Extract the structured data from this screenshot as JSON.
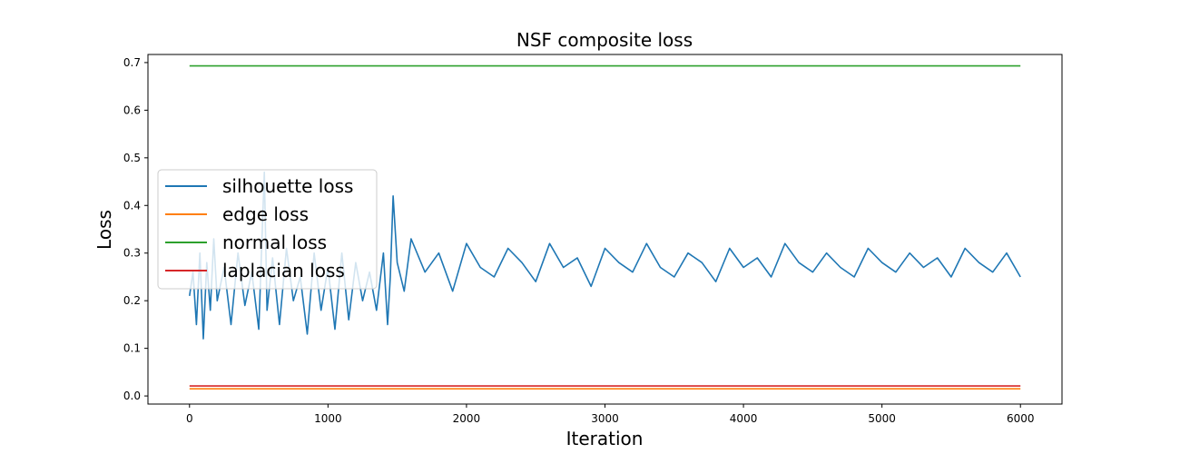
{
  "chart_data": {
    "type": "line",
    "title": "NSF composite loss",
    "xlabel": "Iteration",
    "ylabel": "Loss",
    "xlim": [
      -300,
      6300
    ],
    "ylim": [
      -0.017,
      0.717
    ],
    "xticks": [
      0,
      1000,
      2000,
      3000,
      4000,
      5000,
      6000
    ],
    "yticks": [
      0.0,
      0.1,
      0.2,
      0.3,
      0.4,
      0.5,
      0.6,
      0.7
    ],
    "xtick_labels": [
      "0",
      "1000",
      "2000",
      "3000",
      "4000",
      "5000",
      "6000"
    ],
    "ytick_labels": [
      "0.0",
      "0.1",
      "0.2",
      "0.3",
      "0.4",
      "0.5",
      "0.6",
      "0.7"
    ],
    "grid": false,
    "legend_position": "center-left",
    "series": [
      {
        "name": "silhouette loss",
        "color": "#1f77b4",
        "x": [
          0,
          25,
          50,
          75,
          100,
          125,
          150,
          175,
          200,
          250,
          300,
          350,
          400,
          450,
          500,
          540,
          560,
          600,
          650,
          700,
          750,
          800,
          850,
          900,
          950,
          1000,
          1050,
          1100,
          1150,
          1200,
          1250,
          1300,
          1350,
          1400,
          1430,
          1450,
          1470,
          1500,
          1550,
          1600,
          1700,
          1800,
          1900,
          2000,
          2100,
          2200,
          2300,
          2400,
          2500,
          2600,
          2700,
          2800,
          2900,
          3000,
          3100,
          3200,
          3300,
          3400,
          3500,
          3600,
          3700,
          3800,
          3900,
          4000,
          4100,
          4200,
          4300,
          4400,
          4500,
          4600,
          4700,
          4800,
          4900,
          5000,
          5100,
          5200,
          5300,
          5400,
          5500,
          5600,
          5700,
          5800,
          5900,
          6000
        ],
        "y": [
          0.21,
          0.26,
          0.15,
          0.3,
          0.12,
          0.28,
          0.18,
          0.33,
          0.2,
          0.27,
          0.15,
          0.3,
          0.19,
          0.26,
          0.14,
          0.47,
          0.18,
          0.29,
          0.15,
          0.31,
          0.2,
          0.25,
          0.13,
          0.3,
          0.18,
          0.27,
          0.14,
          0.3,
          0.16,
          0.28,
          0.2,
          0.26,
          0.18,
          0.3,
          0.15,
          0.25,
          0.42,
          0.28,
          0.22,
          0.33,
          0.26,
          0.3,
          0.22,
          0.32,
          0.27,
          0.25,
          0.31,
          0.28,
          0.24,
          0.32,
          0.27,
          0.29,
          0.23,
          0.31,
          0.28,
          0.26,
          0.32,
          0.27,
          0.25,
          0.3,
          0.28,
          0.24,
          0.31,
          0.27,
          0.29,
          0.25,
          0.32,
          0.28,
          0.26,
          0.3,
          0.27,
          0.25,
          0.31,
          0.28,
          0.26,
          0.3,
          0.27,
          0.29,
          0.25,
          0.31,
          0.28,
          0.26,
          0.3,
          0.25
        ]
      },
      {
        "name": "edge loss",
        "color": "#ff7f0e",
        "x": [
          0,
          6000
        ],
        "y": [
          0.015,
          0.015
        ]
      },
      {
        "name": "normal loss",
        "color": "#2ca02c",
        "x": [
          0,
          6000
        ],
        "y": [
          0.693,
          0.693
        ]
      },
      {
        "name": "laplacian loss",
        "color": "#d62728",
        "x": [
          0,
          6000
        ],
        "y": [
          0.021,
          0.021
        ]
      }
    ]
  }
}
